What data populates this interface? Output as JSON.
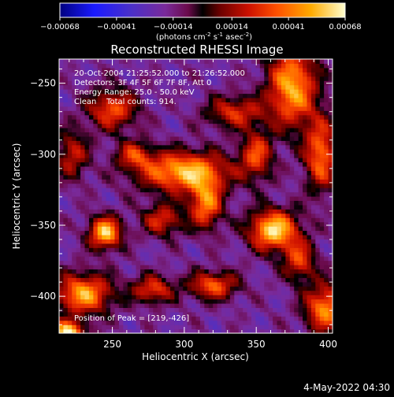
{
  "colorbar": {
    "tick_labels": [
      "-0.00068",
      "-0.00041",
      "-0.00014",
      "0.00014",
      "0.00041",
      "0.00068"
    ],
    "range": [
      -0.00068,
      0.00068
    ],
    "unit_parts": [
      "(photons cm",
      "-2",
      " s",
      "-1",
      " asec",
      "-2",
      ")"
    ]
  },
  "chart_data": {
    "type": "heatmap",
    "title": "Reconstructed RHESSI Image",
    "xlabel": "Heliocentric X (arcsec)",
    "ylabel": "Heliocentric Y (arcsec)",
    "xlim": [
      213,
      403
    ],
    "ylim": [
      -426,
      -233
    ],
    "xticks": [
      250,
      300,
      350,
      400
    ],
    "yticks": [
      -250,
      -300,
      -350,
      -400
    ],
    "xtick_labels": [
      "250",
      "300",
      "350",
      "400"
    ],
    "ytick_labels": [
      "−250",
      "−300",
      "−350",
      "−400"
    ],
    "grid_resolution": 64,
    "sources": [
      {
        "x": 375,
        "y": -252,
        "sx": 12,
        "sy": 20,
        "value": 0.00052
      },
      {
        "x": 300,
        "y": -312,
        "sx": 22,
        "sy": 10,
        "value": 0.00055
      },
      {
        "x": 250,
        "y": -268,
        "sx": 12,
        "sy": 10,
        "value": 0.00034
      },
      {
        "x": 245,
        "y": -355,
        "sx": 8,
        "sy": 8,
        "value": 0.00058
      },
      {
        "x": 362,
        "y": -353,
        "sx": 12,
        "sy": 10,
        "value": 0.00062
      },
      {
        "x": 315,
        "y": -335,
        "sx": 8,
        "sy": 12,
        "value": 0.00042
      },
      {
        "x": 230,
        "y": -398,
        "sx": 14,
        "sy": 10,
        "value": 0.0005
      },
      {
        "x": 219,
        "y": -426,
        "sx": 8,
        "sy": 6,
        "value": 0.00068
      },
      {
        "x": 395,
        "y": -300,
        "sx": 8,
        "sy": 18,
        "value": 0.0004
      },
      {
        "x": 398,
        "y": -408,
        "sx": 10,
        "sy": 12,
        "value": 0.00046
      },
      {
        "x": 320,
        "y": -392,
        "sx": 12,
        "sy": 7,
        "value": 0.00036
      },
      {
        "x": 278,
        "y": -395,
        "sx": 10,
        "sy": 7,
        "value": 0.0003
      },
      {
        "x": 335,
        "y": -270,
        "sx": 14,
        "sy": 8,
        "value": 0.00026
      },
      {
        "x": 350,
        "y": -300,
        "sx": 8,
        "sy": 12,
        "value": 0.0003
      },
      {
        "x": 285,
        "y": -346,
        "sx": 10,
        "sy": 8,
        "value": 0.00026
      },
      {
        "x": 222,
        "y": -300,
        "sx": 8,
        "sy": 12,
        "value": 0.00022
      },
      {
        "x": 265,
        "y": -300,
        "sx": 9,
        "sy": 7,
        "value": 0.00022
      },
      {
        "x": 380,
        "y": -375,
        "sx": 8,
        "sy": 10,
        "value": 0.00028
      }
    ],
    "annotations": {
      "time": "20-Oct-2004 21:25:52.000 to 21:26:52.000",
      "detectors": "Detectors: 3F 4F 5F 6F 7F 8F, Att 0",
      "energy": "Energy Range: 25.0 - 50.0 keV",
      "clean": "Clean    Total counts: 914.",
      "peak": "Position of Peak = [219,-426]"
    }
  },
  "footer": {
    "timestamp": "4-May-2022 04:30"
  }
}
